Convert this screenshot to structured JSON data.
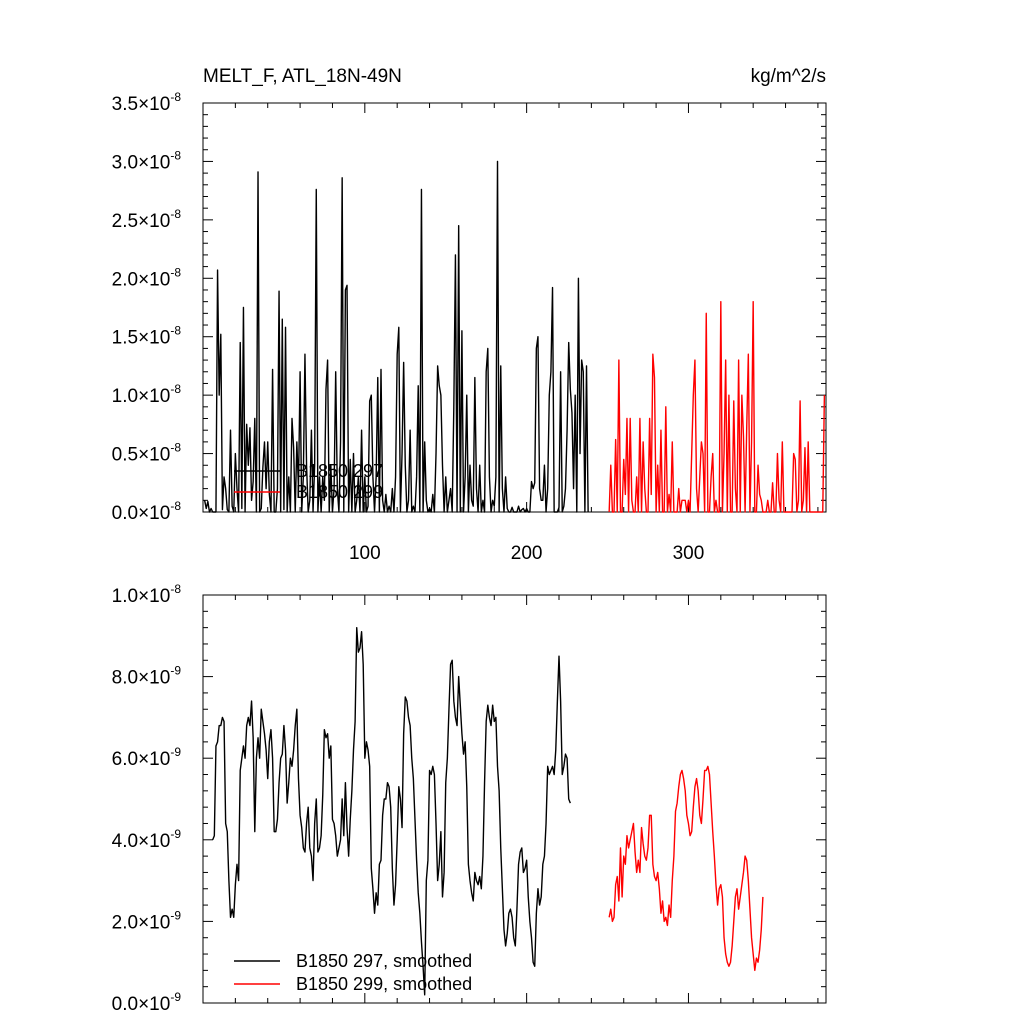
{
  "header": {
    "title": "MELT_F, ATL_18N-49N",
    "units": "kg/m^2/s"
  },
  "colors": {
    "run_297": "#000000",
    "run_299": "#ff0000"
  },
  "chart_data": [
    {
      "type": "line",
      "title": "MELT_F, ATL_18N-49N",
      "units": "kg/m^2/s",
      "xlim": [
        0,
        385
      ],
      "ylim": [
        0,
        3.5e-08
      ],
      "x_ticks": [
        "100",
        "200",
        "300"
      ],
      "x_tick_values": [
        100,
        200,
        300
      ],
      "y_ticks": [
        {
          "mant": "0.0",
          "exp": "-8",
          "value": 0
        },
        {
          "mant": "0.5",
          "exp": "-8",
          "value": 5e-09
        },
        {
          "mant": "1.0",
          "exp": "-8",
          "value": 1e-08
        },
        {
          "mant": "1.5",
          "exp": "-8",
          "value": 1.5e-08
        },
        {
          "mant": "2.0",
          "exp": "-8",
          "value": 2e-08
        },
        {
          "mant": "2.5",
          "exp": "-8",
          "value": 2.5e-08
        },
        {
          "mant": "3.0",
          "exp": "-8",
          "value": 3e-08
        },
        {
          "mant": "3.5",
          "exp": "-8",
          "value": 3.5e-08
        }
      ],
      "legend": [
        "B1850 297",
        "B1850 299"
      ],
      "series": [
        {
          "name": "B1850 297",
          "x_start": 1,
          "values": [
            1e-09,
            3e-10,
            9e-10,
            0.0,
            3e-10,
            0.0,
            0.0,
            0.0,
            2.07e-08,
            1e-08,
            1.52e-08,
            2e-10,
            3e-09,
            2e-09,
            2e-10,
            0.0,
            7e-09,
            5e-10,
            0.0,
            5e-09,
            2e-09,
            0.0,
            1.45e-08,
            3e-10,
            1.75e-08,
            0.0,
            7.5e-09,
            4e-09,
            7.2e-09,
            1e-09,
            2.6e-09,
            8e-09,
            0.0,
            2.91e-08,
            0.0,
            3e-10,
            3.8e-09,
            6e-09,
            2e-09,
            6e-09,
            1.5e-09,
            0.0,
            1.22e-08,
            0.0,
            0.0,
            2e-09,
            1.89e-08,
            0.0,
            1.65e-08,
            2e-10,
            1.58e-08,
            0.0,
            3e-09,
            0.0,
            8e-09,
            5.5e-09,
            0.0,
            6e-09,
            2e-09,
            1.2e-08,
            0.0,
            3e-09,
            1.35e-08,
            4e-09,
            0.0,
            1e-09,
            7e-09,
            0.0,
            4e-09,
            2.76e-08,
            0.0,
            3e-09,
            0.0,
            3e-09,
            1e-09,
            1.05e-08,
            1.3e-08,
            0.0,
            4e-09,
            0.0,
            2e-09,
            1.2e-08,
            2e-09,
            0.0,
            6e-09,
            2.86e-08,
            0.0,
            1.9e-08,
            1.94e-08,
            0.0,
            4.5e-09,
            0.0,
            5e-09,
            0.0,
            1e-09,
            3e-09,
            0.0,
            7e-09,
            0.0,
            3e-09,
            0.0,
            5e-10,
            9.5e-09,
            1e-08,
            3e-09,
            0.0,
            3e-09,
            1.15e-08,
            0.0,
            1.22e-08,
            1e-09,
            0.0,
            1.5e-09,
            0.0,
            5e-10,
            0.0,
            2e-09,
            0.0,
            3e-09,
            1.35e-08,
            1.58e-08,
            0.0,
            5e-09,
            1.28e-08,
            4e-09,
            0.0,
            1e-09,
            7e-09,
            0.0,
            5e-10,
            0.0,
            3e-09,
            1.08e-08,
            0.0,
            2.76e-08,
            0.0,
            6e-09,
            1e-09,
            0.0,
            3e-10,
            0.0,
            1.5e-09,
            0.0,
            5e-09,
            1.25e-08,
            1.08e-08,
            1e-08,
            4e-09,
            0.0,
            3e-09,
            0.0,
            1e-09,
            2e-09,
            0.0,
            9e-09,
            2.2e-08,
            0.0,
            2.45e-08,
            0.0,
            1.55e-08,
            0.0,
            3e-09,
            1e-08,
            0.0,
            4e-09,
            1e-09,
            5e-10,
            1.15e-08,
            2e-09,
            0.0,
            4e-09,
            0.0,
            1e-09,
            0.0,
            1.2e-08,
            1.4e-08,
            3e-09,
            0.0,
            1e-09,
            5e-10,
            3e-09,
            3e-08,
            0.0,
            1.25e-08,
            2e-09,
            0.0,
            3e-09,
            3e-10,
            0.0,
            0.0,
            4e-10,
            0.0,
            0.0,
            0.0,
            5e-10,
            0.0,
            2e-10,
            3e-10,
            0.0,
            3e-10,
            0.0,
            0.0,
            2.6e-09,
            2e-09,
            2.5e-09,
            1.4e-08,
            1.5e-08,
            2e-09,
            1e-09,
            1e-09,
            4e-09,
            0.0,
            2e-09,
            1e-08,
            1.2e-08,
            1.92e-08,
            0.0,
            0.0,
            0.0,
            4e-10,
            1.2e-08,
            0.0,
            5e-10,
            2e-09,
            7e-09,
            1.45e-08,
            1.05e-08,
            8.5e-09,
            2e-09,
            1e-08,
            0.0,
            2e-08,
            5e-09,
            1.3e-08,
            1.2e-08,
            0.0,
            1.25e-08,
            0.0
          ]
        },
        {
          "name": "B1850 299",
          "x_start": 251,
          "values": [
            0.0,
            4e-09,
            0.0,
            0.0,
            6.2e-09,
            0.0,
            1.3e-08,
            0.0,
            0.0,
            4.5e-09,
            1.5e-09,
            8e-09,
            0.0,
            8e-09,
            1e-09,
            0.0,
            0.0,
            3e-09,
            0.0,
            8e-09,
            0.0,
            6e-09,
            2e-09,
            0.0,
            0.0,
            8e-09,
            1.5e-09,
            1.35e-08,
            1.15e-08,
            0.0,
            4e-09,
            0.0,
            7e-09,
            0.0,
            0.0,
            9e-09,
            0.0,
            1.5e-09,
            0.0,
            6e-09,
            0.0,
            0.0,
            0.0,
            2e-09,
            0.0,
            1e-09,
            1e-09,
            1e-09,
            0.0,
            1e-09,
            0.0,
            5e-09,
            1e-08,
            1.3e-08,
            2e-09,
            0.0,
            3e-09,
            6e-09,
            5e-09,
            0.0,
            1.7e-08,
            0.0,
            0.0,
            3e-09,
            5e-09,
            0.0,
            1e-09,
            0.0,
            0.0,
            1.8e-08,
            0.0,
            5e-09,
            1.3e-08,
            0.0,
            1e-08,
            0.0,
            0.0,
            9.5e-09,
            2e-09,
            0.0,
            1.3e-08,
            0.0,
            1e-08,
            6.5e-09,
            0.0,
            7.2e-09,
            1.35e-08,
            0.0,
            6e-09,
            1.8e-08,
            0.0,
            0.0,
            4e-09,
            1.5e-09,
            1e-09,
            0.0,
            0.0,
            0.0,
            1e-09,
            0.0,
            0.0,
            2.5e-09,
            0.0,
            0.0,
            5e-09,
            1e-09,
            0.0,
            6e-09,
            0.0,
            0.0,
            0.0,
            0.0,
            0.0,
            0.0,
            5e-09,
            4.5e-09,
            0.0,
            1e-09,
            9.5e-09,
            0.0,
            1e-09,
            5.5e-09,
            0.0,
            6e-09,
            0.0,
            0.0,
            0.0,
            0.0,
            0.0,
            0.0,
            0.0,
            0.0,
            0.0,
            1e-08
          ]
        }
      ]
    },
    {
      "type": "line",
      "xlim": [
        0,
        385
      ],
      "ylim": [
        0,
        1e-08
      ],
      "x_tick_values": [
        100,
        200,
        300
      ],
      "y_ticks": [
        {
          "mant": "0.0",
          "exp": "-9",
          "value": 0
        },
        {
          "mant": "2.0",
          "exp": "-9",
          "value": 2e-09
        },
        {
          "mant": "4.0",
          "exp": "-9",
          "value": 4e-09
        },
        {
          "mant": "6.0",
          "exp": "-9",
          "value": 6e-09
        },
        {
          "mant": "8.0",
          "exp": "-9",
          "value": 8e-09
        },
        {
          "mant": "1.0",
          "exp": "-8",
          "value": 1e-08
        }
      ],
      "legend": [
        "B1850 297, smoothed",
        "B1850 299, smoothed"
      ],
      "series": [
        {
          "name": "B1850 297, smoothed",
          "x_start": 6,
          "values": [
            4e-09,
            4.1e-09,
            6.3e-09,
            6.4e-09,
            6.8e-09,
            6.8e-09,
            7e-09,
            6.9e-09,
            4.4e-09,
            4.2e-09,
            3e-09,
            2.1e-09,
            2.3e-09,
            2.1e-09,
            2.9e-09,
            3.4e-09,
            3e-09,
            5.7e-09,
            6e-09,
            6.3e-09,
            6e-09,
            6.8e-09,
            7e-09,
            6.8e-09,
            7.4e-09,
            6.5e-09,
            4.2e-09,
            6e-09,
            6.5e-09,
            6e-09,
            7.2e-09,
            6.9e-09,
            6.6e-09,
            6.2e-09,
            5.5e-09,
            6.4e-09,
            6.7e-09,
            6e-09,
            4.2e-09,
            4.2e-09,
            4.5e-09,
            5.4e-09,
            6e-09,
            6.1e-09,
            6.8e-09,
            6.2e-09,
            4.9e-09,
            5.4e-09,
            6e-09,
            5.8e-09,
            6.2e-09,
            6.8e-09,
            7.2e-09,
            5.5e-09,
            4.6e-09,
            4.3e-09,
            3.8e-09,
            3.7e-09,
            4.4e-09,
            4.8e-09,
            3.8e-09,
            3.6e-09,
            3e-09,
            4.4e-09,
            5e-09,
            3.7e-09,
            3.8e-09,
            4.1e-09,
            5.1e-09,
            6.7e-09,
            6.5e-09,
            6.6e-09,
            6e-09,
            6.3e-09,
            4.5e-09,
            4.4e-09,
            4.1e-09,
            3.6e-09,
            3.8e-09,
            4e-09,
            5e-09,
            4.1e-09,
            5.4e-09,
            4.3e-09,
            3.6e-09,
            4.5e-09,
            5.2e-09,
            6.2e-09,
            6.9e-09,
            9.2e-09,
            8.6e-09,
            8.7e-09,
            9.1e-09,
            8.3e-09,
            6e-09,
            6.4e-09,
            6.2e-09,
            5.8e-09,
            3.3e-09,
            2.8e-09,
            2.2e-09,
            2.7e-09,
            2.4e-09,
            3.4e-09,
            3.5e-09,
            4.6e-09,
            5e-09,
            5e-09,
            5.4e-09,
            5.3e-09,
            4.8e-09,
            3.3e-09,
            2.4e-09,
            2.9e-09,
            4e-09,
            5.3e-09,
            5e-09,
            4.3e-09,
            6.6e-09,
            7.5e-09,
            7.4e-09,
            7e-09,
            6.8e-09,
            6e-09,
            5.5e-09,
            4.5e-09,
            3.5e-09,
            2.7e-09,
            2.2e-09,
            1.5e-09,
            9e-10,
            2e-10,
            3e-09,
            3.5e-09,
            5.7e-09,
            5.6e-09,
            5.8e-09,
            5.6e-09,
            4.4e-09,
            3e-09,
            3.4e-09,
            4.2e-09,
            2.6e-09,
            3.2e-09,
            5.4e-09,
            6e-09,
            7.2e-09,
            8.3e-09,
            8.4e-09,
            7.4e-09,
            7e-09,
            6.8e-09,
            8e-09,
            7.3e-09,
            6.6e-09,
            6.1e-09,
            6.4e-09,
            5.3e-09,
            3.4e-09,
            3e-09,
            2.7e-09,
            2.5e-09,
            3.2e-09,
            3e-09,
            2.9e-09,
            3.1e-09,
            2.8e-09,
            3.6e-09,
            5.4e-09,
            6.9e-09,
            7.3e-09,
            7e-09,
            6.8e-09,
            7.3e-09,
            6.9e-09,
            7e-09,
            5.8e-09,
            5.2e-09,
            3.8e-09,
            2.8e-09,
            1.8e-09,
            1.4e-09,
            1.7e-09,
            2.2e-09,
            2.3e-09,
            2.1e-09,
            1.6e-09,
            1.4e-09,
            2.3e-09,
            3.4e-09,
            3.7e-09,
            3.8e-09,
            3.2e-09,
            3.3e-09,
            3.5e-09,
            2.6e-09,
            2e-09,
            1.6e-09,
            1e-09,
            9e-10,
            2.2e-09,
            2.8e-09,
            2.4e-09,
            2.6e-09,
            3.4e-09,
            3.6e-09,
            4.4e-09,
            5.8e-09,
            5.6e-09,
            5.7e-09,
            5.8e-09,
            5.6e-09,
            6.2e-09,
            7.4e-09,
            8.5e-09,
            7.4e-09,
            5.6e-09,
            5.8e-09,
            6.1e-09,
            6e-09,
            5e-09,
            4.9e-09
          ]
        },
        {
          "name": "B1850 299, smoothed",
          "x_start": 251,
          "values": [
            2.1e-09,
            2.3e-09,
            2e-09,
            2.1e-09,
            2.9e-09,
            3.1e-09,
            2.5e-09,
            3.8e-09,
            2.6e-09,
            3.6e-09,
            3.4e-09,
            4.1e-09,
            3.8e-09,
            4e-09,
            4.2e-09,
            4.4e-09,
            3.7e-09,
            3.2e-09,
            3.5e-09,
            3.2e-09,
            4.3e-09,
            3.9e-09,
            3.6e-09,
            3.5e-09,
            3.8e-09,
            4.6e-09,
            4.6e-09,
            3.4e-09,
            3.1e-09,
            3e-09,
            3.2e-09,
            2.8e-09,
            2.2e-09,
            2.5e-09,
            2e-09,
            2.1e-09,
            1.9e-09,
            2.4e-09,
            2.1e-09,
            3e-09,
            3.6e-09,
            4.7e-09,
            4.9e-09,
            5.3e-09,
            5.6e-09,
            5.7e-09,
            5.5e-09,
            5.2e-09,
            4.6e-09,
            4.4e-09,
            4.1e-09,
            4.2e-09,
            4.8e-09,
            5.3e-09,
            5.5e-09,
            5.2e-09,
            4.6e-09,
            4.4e-09,
            5e-09,
            5.7e-09,
            5.7e-09,
            5.8e-09,
            5.6e-09,
            4.9e-09,
            4.2e-09,
            3.6e-09,
            2.9e-09,
            2.4e-09,
            2.8e-09,
            2.9e-09,
            2.6e-09,
            1.6e-09,
            1.2e-09,
            1e-09,
            9e-10,
            1e-09,
            1.4e-09,
            2e-09,
            2.6e-09,
            2.8e-09,
            2.3e-09,
            2.6e-09,
            2.9e-09,
            3.2e-09,
            3.6e-09,
            3.5e-09,
            3e-09,
            2.3e-09,
            1.6e-09,
            1.2e-09,
            8e-10,
            1.1e-09,
            1e-09,
            1.3e-09,
            1.8e-09,
            2.6e-09
          ]
        }
      ]
    }
  ]
}
